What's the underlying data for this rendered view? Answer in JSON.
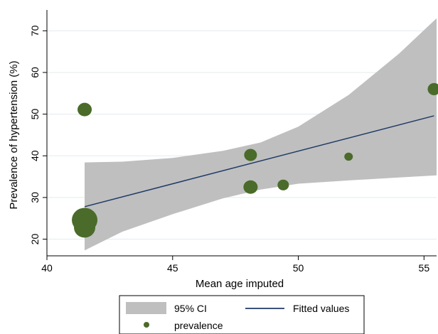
{
  "chart_data": {
    "type": "scatter",
    "xlabel": "Mean age imputed",
    "ylabel": "Prevalence of hypertension (%)",
    "xlim": [
      40,
      55.5
    ],
    "ylim": [
      16,
      75
    ],
    "x_ticks": [
      40,
      45,
      50,
      55
    ],
    "y_ticks": [
      20,
      30,
      40,
      50,
      60,
      70
    ],
    "grid": true,
    "legend_position": "bottom",
    "legend": {
      "ci_label": "95% CI",
      "fit_label": "Fitted values",
      "points_label": "prevalence"
    },
    "colors": {
      "ci_band": "#bfbfbf",
      "fit_line": "#1f3a68",
      "points": "#4a6b2a"
    },
    "series": [
      {
        "name": "prevalence",
        "type": "scatter",
        "x": [
          41.5,
          41.5,
          41.5,
          48.1,
          48.1,
          49.4,
          52.0,
          55.4
        ],
        "y": [
          51.1,
          24.6,
          22.8,
          40.2,
          32.5,
          33.0,
          39.8,
          56.0
        ],
        "weight": [
          1.0,
          1.8,
          1.5,
          0.9,
          1.0,
          0.8,
          0.6,
          0.9
        ]
      },
      {
        "name": "Fitted values",
        "type": "line",
        "x": [
          41.5,
          55.4
        ],
        "y": [
          27.8,
          49.6
        ]
      },
      {
        "name": "95% CI",
        "type": "area",
        "x": [
          41.5,
          43,
          45,
          47,
          48.5,
          50,
          52,
          54,
          55.5
        ],
        "lower": [
          17.3,
          21.8,
          26.0,
          29.8,
          31.9,
          33.3,
          34.1,
          34.8,
          35.3
        ],
        "upper": [
          38.4,
          38.6,
          39.5,
          41.2,
          43.2,
          47.0,
          54.6,
          64.5,
          73.0
        ]
      }
    ]
  }
}
